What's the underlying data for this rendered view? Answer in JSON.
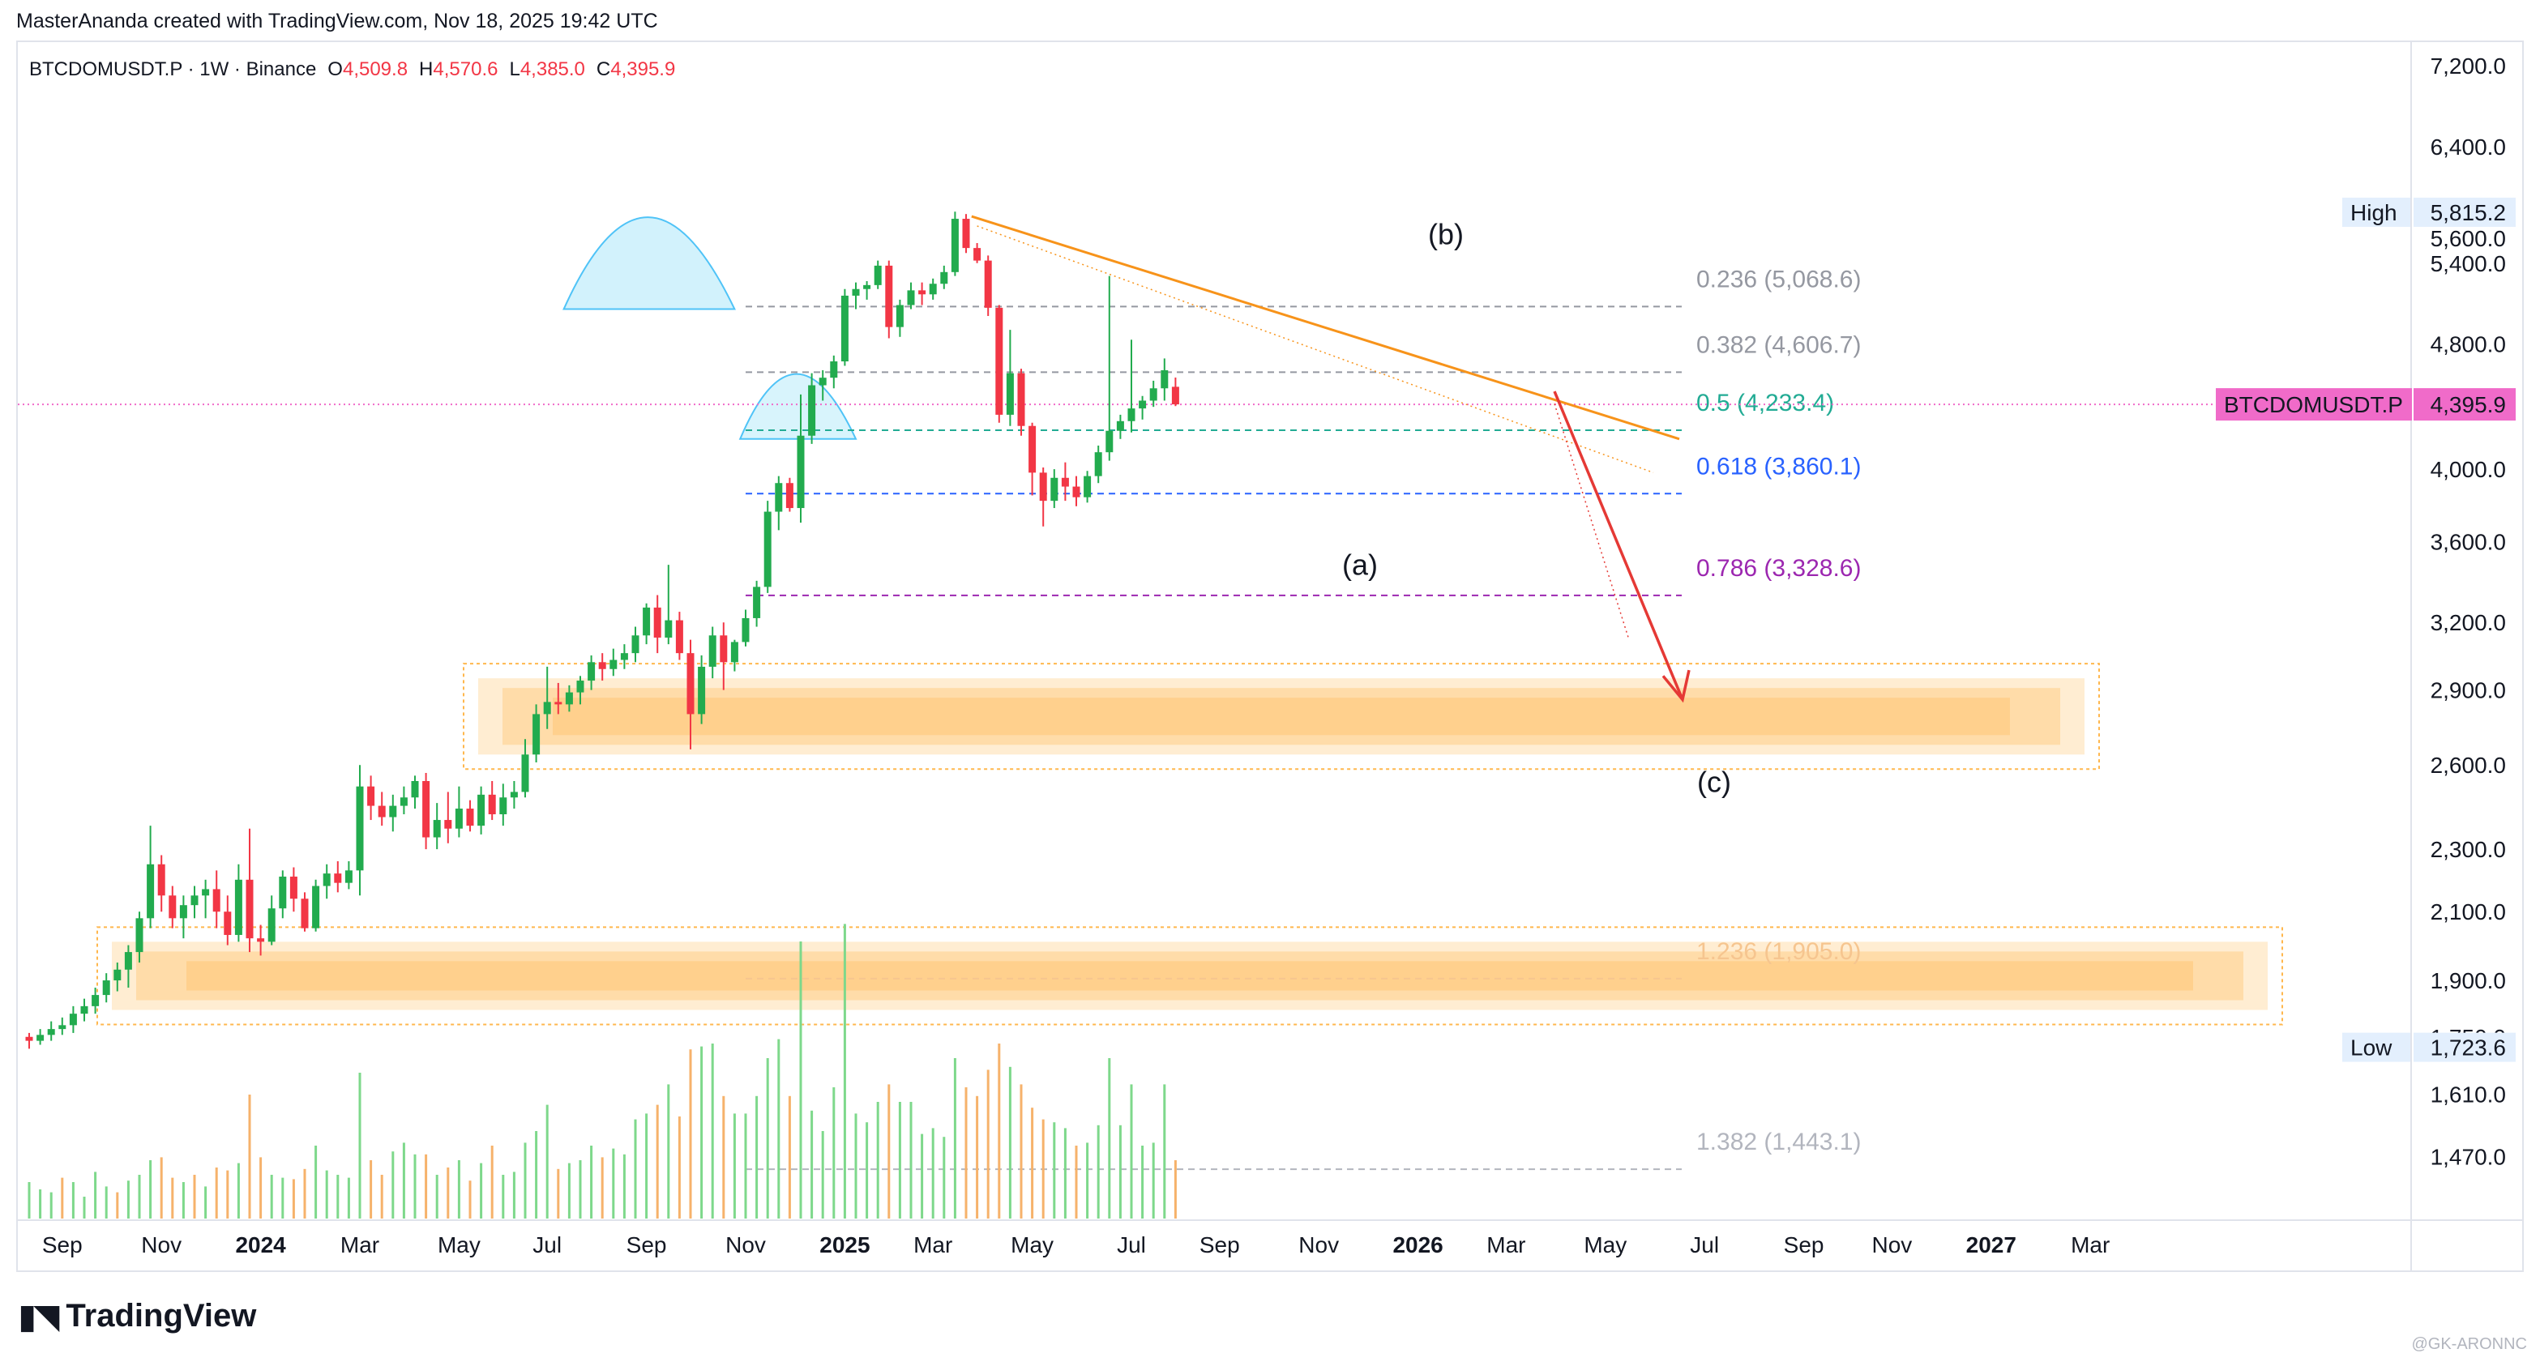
{
  "header": {
    "credit": "MasterAnanda created with TradingView.com, Nov 18, 2025 19:42 UTC",
    "symbol_line": "BTCDOMUSDT.P · 1W · Binance",
    "ohlc": [
      {
        "k": "O",
        "v": "4,509.8"
      },
      {
        "k": "H",
        "v": "4,570.6"
      },
      {
        "k": "L",
        "v": "4,385.0"
      },
      {
        "k": "C",
        "v": "4,395.9"
      }
    ]
  },
  "brand": {
    "logo_text": "TradingView",
    "watermark": "@GK-ARONNC"
  },
  "colors": {
    "up": "#22ab4e",
    "down": "#f23645",
    "vol_up": "#7ed88b",
    "vol_down": "#f6b26b",
    "trendline": "#f7931a",
    "arrow": "#e53935",
    "zone": "#ffb74d",
    "dome": "#7fdbf5",
    "price_tag": "#f06bc9"
  },
  "chart_data": {
    "type": "candlestick",
    "symbol": "BTCDOMUSDT.P",
    "interval": "1W",
    "exchange": "Binance",
    "y_scale": "log",
    "ylim": [
      1340,
      7450
    ],
    "y_ticks": [
      "7,200.0",
      "6,400.0",
      "5,600.0",
      "5,400.0",
      "4,800.0",
      "4,000.0",
      "3,600.0",
      "3,200.0",
      "2,900.0",
      "2,600.0",
      "2,300.0",
      "2,100.0",
      "1,900.0",
      "1,750.0",
      "1,610.0",
      "1,470.0"
    ],
    "y_tick_values": [
      7200,
      6400,
      5600,
      5400,
      4800,
      4000,
      3600,
      3200,
      2900,
      2600,
      2300,
      2100,
      1900,
      1750,
      1610,
      1470
    ],
    "x_ticks": [
      {
        "label": "Sep",
        "week": 3,
        "bold": false
      },
      {
        "label": "Nov",
        "week": 12,
        "bold": false
      },
      {
        "label": "2024",
        "week": 21,
        "bold": true
      },
      {
        "label": "Mar",
        "week": 30,
        "bold": false
      },
      {
        "label": "May",
        "week": 39,
        "bold": false
      },
      {
        "label": "Jul",
        "week": 47,
        "bold": false
      },
      {
        "label": "Sep",
        "week": 56,
        "bold": false
      },
      {
        "label": "Nov",
        "week": 65,
        "bold": false
      },
      {
        "label": "2025",
        "week": 74,
        "bold": true
      },
      {
        "label": "Mar",
        "week": 82,
        "bold": false
      },
      {
        "label": "May",
        "week": 91,
        "bold": false
      },
      {
        "label": "Jul",
        "week": 100,
        "bold": false
      },
      {
        "label": "Sep",
        "week": 108,
        "bold": false
      },
      {
        "label": "Nov",
        "week": 117,
        "bold": false
      },
      {
        "label": "2026",
        "week": 126,
        "bold": true
      },
      {
        "label": "Mar",
        "week": 134,
        "bold": false
      },
      {
        "label": "May",
        "week": 143,
        "bold": false
      },
      {
        "label": "Jul",
        "week": 152,
        "bold": false
      },
      {
        "label": "Sep",
        "week": 161,
        "bold": false
      },
      {
        "label": "Nov",
        "week": 169,
        "bold": false
      },
      {
        "label": "2027",
        "week": 178,
        "bold": true
      },
      {
        "label": "Mar",
        "week": 187,
        "bold": false
      }
    ],
    "candles": [
      [
        1750,
        1760,
        1720,
        1740
      ],
      [
        1740,
        1770,
        1730,
        1755
      ],
      [
        1755,
        1790,
        1740,
        1770
      ],
      [
        1770,
        1800,
        1755,
        1780
      ],
      [
        1780,
        1830,
        1760,
        1810
      ],
      [
        1810,
        1850,
        1790,
        1830
      ],
      [
        1830,
        1880,
        1810,
        1860
      ],
      [
        1860,
        1920,
        1840,
        1900
      ],
      [
        1900,
        1950,
        1870,
        1930
      ],
      [
        1930,
        2000,
        1880,
        1980
      ],
      [
        1980,
        2100,
        1950,
        2080
      ],
      [
        2080,
        2380,
        2050,
        2250
      ],
      [
        2250,
        2280,
        2100,
        2150
      ],
      [
        2150,
        2180,
        2050,
        2080
      ],
      [
        2080,
        2150,
        2020,
        2120
      ],
      [
        2120,
        2180,
        2080,
        2150
      ],
      [
        2150,
        2200,
        2080,
        2170
      ],
      [
        2170,
        2230,
        2050,
        2100
      ],
      [
        2100,
        2150,
        2000,
        2030
      ],
      [
        2030,
        2250,
        2010,
        2200
      ],
      [
        2200,
        2370,
        1980,
        2020
      ],
      [
        2020,
        2060,
        1970,
        2010
      ],
      [
        2010,
        2150,
        2000,
        2110
      ],
      [
        2110,
        2230,
        2080,
        2210
      ],
      [
        2210,
        2240,
        2100,
        2140
      ],
      [
        2140,
        2160,
        2040,
        2050
      ],
      [
        2050,
        2200,
        2040,
        2180
      ],
      [
        2180,
        2250,
        2140,
        2220
      ],
      [
        2220,
        2260,
        2160,
        2190
      ],
      [
        2190,
        2260,
        2170,
        2230
      ],
      [
        2230,
        2600,
        2150,
        2520
      ],
      [
        2520,
        2560,
        2400,
        2450
      ],
      [
        2450,
        2500,
        2380,
        2410
      ],
      [
        2410,
        2490,
        2360,
        2450
      ],
      [
        2450,
        2520,
        2420,
        2480
      ],
      [
        2480,
        2560,
        2440,
        2540
      ],
      [
        2540,
        2570,
        2300,
        2340
      ],
      [
        2340,
        2460,
        2300,
        2400
      ],
      [
        2400,
        2500,
        2320,
        2370
      ],
      [
        2370,
        2520,
        2340,
        2440
      ],
      [
        2440,
        2470,
        2360,
        2380
      ],
      [
        2380,
        2520,
        2350,
        2490
      ],
      [
        2490,
        2540,
        2400,
        2420
      ],
      [
        2420,
        2530,
        2380,
        2480
      ],
      [
        2480,
        2540,
        2440,
        2500
      ],
      [
        2500,
        2700,
        2480,
        2640
      ],
      [
        2640,
        2840,
        2610,
        2800
      ],
      [
        2800,
        3000,
        2740,
        2850
      ],
      [
        2850,
        2930,
        2800,
        2840
      ],
      [
        2840,
        2920,
        2810,
        2890
      ],
      [
        2890,
        2960,
        2840,
        2940
      ],
      [
        2940,
        3050,
        2900,
        3020
      ],
      [
        3020,
        3060,
        2940,
        2990
      ],
      [
        2990,
        3080,
        2960,
        3030
      ],
      [
        3030,
        3100,
        2990,
        3060
      ],
      [
        3060,
        3180,
        3020,
        3140
      ],
      [
        3140,
        3290,
        3100,
        3270
      ],
      [
        3270,
        3330,
        3060,
        3130
      ],
      [
        3130,
        3480,
        3100,
        3210
      ],
      [
        3210,
        3250,
        3030,
        3060
      ],
      [
        3060,
        3120,
        2660,
        2800
      ],
      [
        2800,
        3050,
        2760,
        3000
      ],
      [
        3000,
        3180,
        2950,
        3140
      ],
      [
        3140,
        3200,
        2900,
        3020
      ],
      [
        3020,
        3120,
        2980,
        3110
      ],
      [
        3110,
        3260,
        3090,
        3220
      ],
      [
        3220,
        3400,
        3180,
        3370
      ],
      [
        3370,
        3820,
        3340,
        3760
      ],
      [
        3760,
        3960,
        3660,
        3920
      ],
      [
        3920,
        3950,
        3760,
        3780
      ],
      [
        3780,
        4460,
        3700,
        4200
      ],
      [
        4200,
        4600,
        4150,
        4520
      ],
      [
        4520,
        4620,
        4420,
        4570
      ],
      [
        4570,
        4720,
        4500,
        4680
      ],
      [
        4680,
        5200,
        4650,
        5150
      ],
      [
        5150,
        5250,
        5050,
        5200
      ],
      [
        5200,
        5260,
        5120,
        5230
      ],
      [
        5230,
        5420,
        5200,
        5380
      ],
      [
        5380,
        5420,
        4840,
        4920
      ],
      [
        4920,
        5120,
        4850,
        5080
      ],
      [
        5080,
        5250,
        5050,
        5190
      ],
      [
        5190,
        5250,
        5080,
        5160
      ],
      [
        5160,
        5280,
        5120,
        5240
      ],
      [
        5240,
        5380,
        5200,
        5330
      ],
      [
        5330,
        5820,
        5300,
        5760
      ],
      [
        5760,
        5800,
        5480,
        5520
      ],
      [
        5520,
        5560,
        5400,
        5420
      ],
      [
        5420,
        5460,
        5000,
        5060
      ],
      [
        5060,
        5080,
        4280,
        4330
      ],
      [
        4330,
        4900,
        4260,
        4600
      ],
      [
        4600,
        4630,
        4200,
        4260
      ],
      [
        4260,
        4280,
        3850,
        3980
      ],
      [
        3980,
        4010,
        3680,
        3820
      ],
      [
        3820,
        4000,
        3780,
        3950
      ],
      [
        3950,
        4040,
        3820,
        3900
      ],
      [
        3900,
        3960,
        3790,
        3840
      ],
      [
        3840,
        3990,
        3810,
        3960
      ],
      [
        3960,
        4140,
        3920,
        4100
      ],
      [
        4100,
        5300,
        4050,
        4230
      ],
      [
        4230,
        4330,
        4180,
        4290
      ],
      [
        4290,
        4830,
        4220,
        4370
      ],
      [
        4370,
        4450,
        4300,
        4420
      ],
      [
        4420,
        4550,
        4380,
        4500
      ],
      [
        4500,
        4700,
        4420,
        4620
      ],
      [
        4510,
        4571,
        4385,
        4396
      ]
    ],
    "volumes": [
      [
        0.25,
        1
      ],
      [
        0.2,
        1
      ],
      [
        0.18,
        1
      ],
      [
        0.28,
        0
      ],
      [
        0.25,
        1
      ],
      [
        0.15,
        1
      ],
      [
        0.32,
        1
      ],
      [
        0.22,
        1
      ],
      [
        0.18,
        0
      ],
      [
        0.26,
        1
      ],
      [
        0.3,
        1
      ],
      [
        0.4,
        1
      ],
      [
        0.42,
        0
      ],
      [
        0.28,
        0
      ],
      [
        0.25,
        1
      ],
      [
        0.3,
        0
      ],
      [
        0.22,
        1
      ],
      [
        0.35,
        0
      ],
      [
        0.33,
        0
      ],
      [
        0.38,
        1
      ],
      [
        0.85,
        0
      ],
      [
        0.42,
        0
      ],
      [
        0.3,
        1
      ],
      [
        0.28,
        1
      ],
      [
        0.27,
        0
      ],
      [
        0.34,
        0
      ],
      [
        0.5,
        1
      ],
      [
        0.33,
        1
      ],
      [
        0.3,
        1
      ],
      [
        0.28,
        1
      ],
      [
        1.0,
        1
      ],
      [
        0.4,
        0
      ],
      [
        0.3,
        0
      ],
      [
        0.46,
        1
      ],
      [
        0.52,
        1
      ],
      [
        0.44,
        1
      ],
      [
        0.44,
        0
      ],
      [
        0.3,
        1
      ],
      [
        0.35,
        0
      ],
      [
        0.4,
        1
      ],
      [
        0.26,
        0
      ],
      [
        0.38,
        1
      ],
      [
        0.5,
        0
      ],
      [
        0.3,
        1
      ],
      [
        0.32,
        1
      ],
      [
        0.52,
        1
      ],
      [
        0.6,
        1
      ],
      [
        0.78,
        1
      ],
      [
        0.34,
        0
      ],
      [
        0.38,
        1
      ],
      [
        0.4,
        1
      ],
      [
        0.5,
        1
      ],
      [
        0.42,
        0
      ],
      [
        0.48,
        1
      ],
      [
        0.44,
        1
      ],
      [
        0.68,
        1
      ],
      [
        0.72,
        1
      ],
      [
        0.78,
        0
      ],
      [
        0.92,
        1
      ],
      [
        0.7,
        0
      ],
      [
        1.16,
        0
      ],
      [
        1.18,
        1
      ],
      [
        1.2,
        1
      ],
      [
        0.84,
        0
      ],
      [
        0.72,
        1
      ],
      [
        0.72,
        1
      ],
      [
        0.84,
        1
      ],
      [
        1.1,
        1
      ],
      [
        1.23,
        1
      ],
      [
        0.84,
        0
      ],
      [
        1.9,
        1
      ],
      [
        0.74,
        1
      ],
      [
        0.6,
        1
      ],
      [
        0.9,
        1
      ],
      [
        2.02,
        1
      ],
      [
        0.72,
        1
      ],
      [
        0.66,
        1
      ],
      [
        0.8,
        1
      ],
      [
        0.92,
        0
      ],
      [
        0.8,
        1
      ],
      [
        0.8,
        1
      ],
      [
        0.58,
        1
      ],
      [
        0.62,
        1
      ],
      [
        0.56,
        1
      ],
      [
        1.1,
        1
      ],
      [
        0.9,
        0
      ],
      [
        0.84,
        0
      ],
      [
        1.02,
        0
      ],
      [
        1.2,
        0
      ],
      [
        1.04,
        1
      ],
      [
        0.92,
        0
      ],
      [
        0.76,
        0
      ],
      [
        0.68,
        0
      ],
      [
        0.66,
        1
      ],
      [
        0.62,
        1
      ],
      [
        0.5,
        0
      ],
      [
        0.52,
        1
      ],
      [
        0.64,
        1
      ],
      [
        1.1,
        1
      ],
      [
        0.64,
        1
      ],
      [
        0.92,
        1
      ],
      [
        0.5,
        1
      ],
      [
        0.52,
        1
      ],
      [
        0.92,
        1
      ],
      [
        0.4,
        0
      ]
    ],
    "fib_levels": [
      {
        "ratio": "0.236",
        "value": 5068.6,
        "label": "0.236 (5,068.6)",
        "color": "#9598a1"
      },
      {
        "ratio": "0.382",
        "value": 4606.7,
        "label": "0.382 (4,606.7)",
        "color": "#9598a1"
      },
      {
        "ratio": "0.5",
        "value": 4233.4,
        "label": "0.5 (4,233.4)",
        "color": "#22ab94"
      },
      {
        "ratio": "0.618",
        "value": 3860.1,
        "label": "0.618 (3,860.1)",
        "color": "#2962ff"
      },
      {
        "ratio": "0.786",
        "value": 3328.6,
        "label": "0.786 (3,328.6)",
        "color": "#9c27b0"
      },
      {
        "ratio": "1.236",
        "value": 1905.0,
        "label": "1.236 (1,905.0)",
        "color": "#f6c58f"
      },
      {
        "ratio": "1.382",
        "value": 1443.1,
        "label": "1.382 (1,443.1)",
        "color": "#b2b5be"
      }
    ],
    "wave_labels": [
      "(a)",
      "(b)",
      "(c)"
    ],
    "support_zones": [
      {
        "low": 2640,
        "high": 2950
      },
      {
        "low": 1820,
        "high": 2010
      }
    ],
    "markers": {
      "high_label": "High",
      "high_value": "5,815.2",
      "low_label": "Low",
      "low_value": "1,723.6",
      "last_tag": "BTCDOMUSDT.P",
      "last_value": "4,395.9"
    }
  }
}
